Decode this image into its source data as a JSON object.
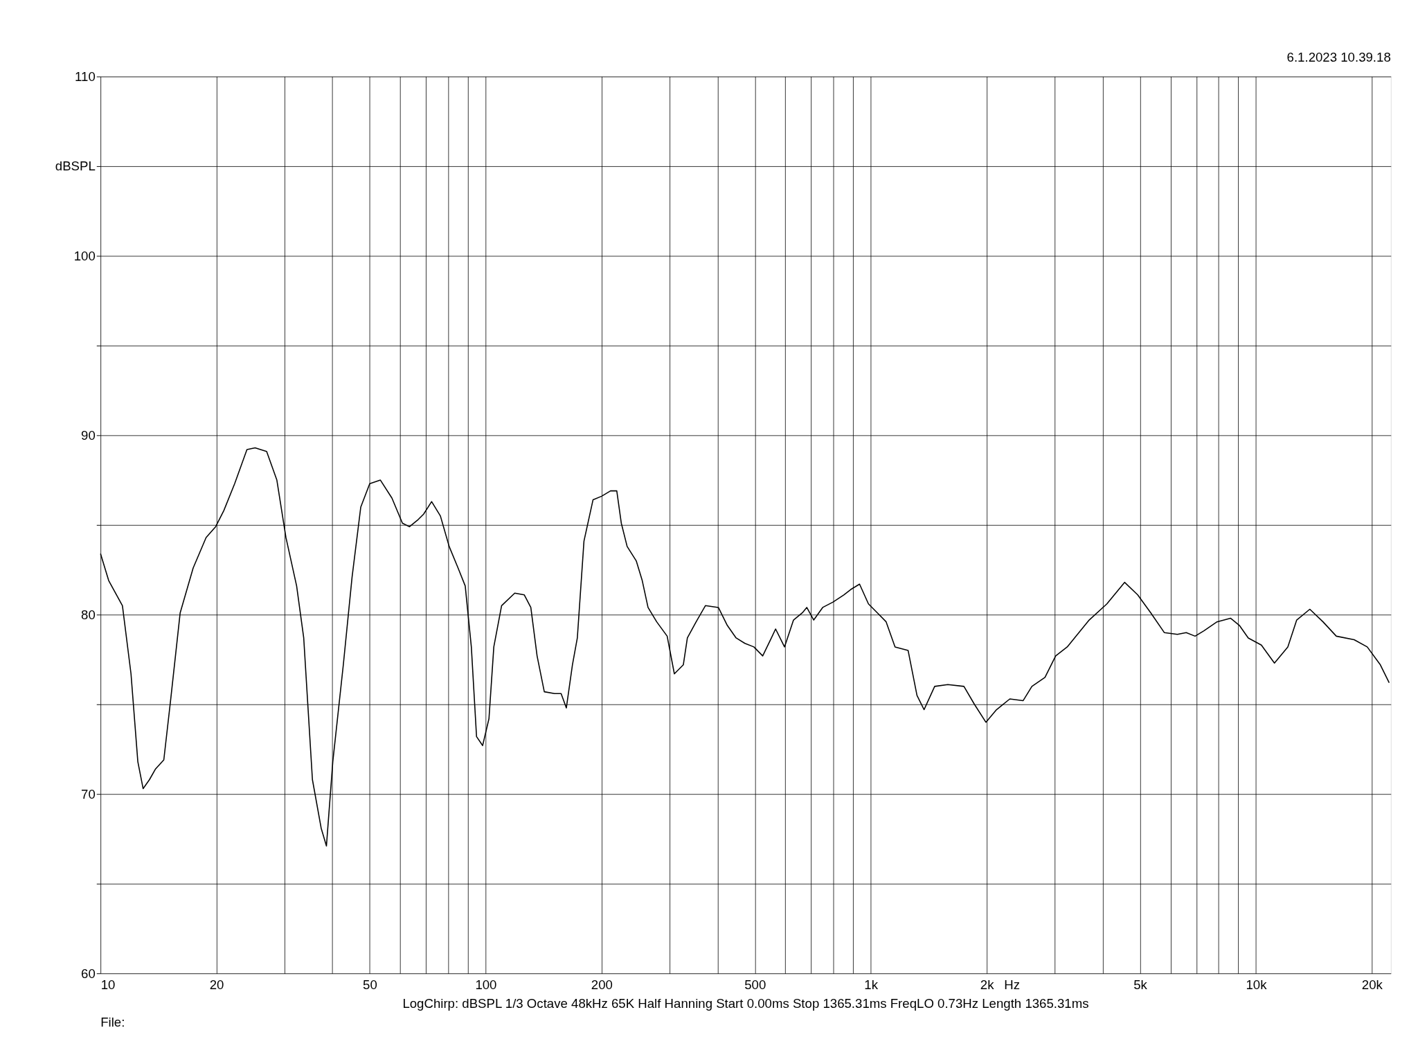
{
  "chart_data": {
    "type": "line",
    "xlabel": "Hz",
    "ylabel": "dBSPL",
    "annotations": [
      "6.1.2023 10.39.18",
      "LogChirp:  dBSPL   1/3 Octave   48kHz   65K   Half Hanning   Start 0.00ms    Stop 1365.31ms    FreqLO 0.73Hz    Length 1365.31ms",
      "File:"
    ],
    "log": "x",
    "grid": true,
    "legend": false,
    "marker": "none",
    "line_style": "solid",
    "xlim": [
      10,
      22400
    ],
    "ylim": [
      60,
      110
    ],
    "xticks": [
      10,
      20,
      {
        "value": 30,
        "label": null
      },
      {
        "value": 40,
        "label": null
      },
      50,
      {
        "value": 60,
        "label": null
      },
      {
        "value": 70,
        "label": null
      },
      {
        "value": 80,
        "label": null
      },
      {
        "value": 90,
        "label": null
      },
      100,
      200,
      {
        "value": 300,
        "label": null
      },
      {
        "value": 400,
        "label": null
      },
      500,
      {
        "value": 600,
        "label": null
      },
      {
        "value": 700,
        "label": null
      },
      {
        "value": 800,
        "label": null
      },
      {
        "value": 900,
        "label": null
      },
      {
        "value": 1000,
        "label": "1k"
      },
      {
        "value": 2000,
        "label": "2k"
      },
      {
        "value": 3000,
        "label": null
      },
      {
        "value": 4000,
        "label": null
      },
      {
        "value": 5000,
        "label": "5k"
      },
      {
        "value": 6000,
        "label": null
      },
      {
        "value": 7000,
        "label": null
      },
      {
        "value": 8000,
        "label": null
      },
      {
        "value": 9000,
        "label": null
      },
      {
        "value": 10000,
        "label": "10k"
      },
      {
        "value": 20000,
        "label": "20k"
      }
    ],
    "yticks": [
      60,
      {
        "value": 65,
        "label": null
      },
      70,
      {
        "value": 75,
        "label": null
      },
      80,
      {
        "value": 85,
        "label": null
      },
      90,
      {
        "value": 95,
        "label": null
      },
      100,
      {
        "value": 105,
        "label": null
      },
      110
    ],
    "series": [
      {
        "color": "#000000",
        "x": [
          10,
          10.5,
          11.4,
          12.0,
          12.5,
          12.9,
          13.4,
          13.9,
          14.6,
          15.2,
          16.1,
          17.4,
          18.8,
          19.9,
          20.9,
          22.3,
          24.0,
          25.2,
          27.0,
          28.7,
          30.3,
          32.3,
          33.7,
          35.5,
          37.4,
          38.6,
          40.1,
          42.7,
          45.0,
          47.4,
          50.0,
          53.3,
          57.1,
          60.8,
          63.4,
          66.8,
          69.0,
          72.4,
          76.3,
          80.4,
          84.8,
          88.5,
          91.8,
          94.7,
          98.2,
          102,
          105,
          110,
          119,
          126,
          131,
          136,
          142,
          151,
          157,
          162,
          168,
          173,
          180,
          190,
          200,
          211,
          219,
          225,
          233,
          246,
          255,
          264,
          278,
          296,
          309,
          326,
          334,
          352,
          372,
          402,
          424,
          447,
          471,
          497,
          524,
          552,
          566,
          597,
          630,
          664,
          682,
          711,
          750,
          798,
          851,
          887,
          935,
          986,
          1040,
          1096,
          1156,
          1250,
          1318,
          1375,
          1465,
          1585,
          1745,
          1858,
          1990,
          2120,
          2296,
          2485,
          2620,
          2833,
          3020,
          3236,
          3412,
          3690,
          4102,
          4560,
          4932,
          5333,
          5781,
          6252,
          6592,
          6950,
          7328,
          7925,
          8590,
          9057,
          9550,
          10330,
          11170,
          12100,
          12760,
          13800,
          14930,
          16170,
          17990,
          19450,
          21040,
          22180
        ],
        "values": [
          83.4,
          81.9,
          80.5,
          76.7,
          71.8,
          70.3,
          70.8,
          71.4,
          71.9,
          75.2,
          80.1,
          82.6,
          84.3,
          84.9,
          85.8,
          87.3,
          89.2,
          89.3,
          89.1,
          87.5,
          84.3,
          81.6,
          78.7,
          70.8,
          68.1,
          67.1,
          71.8,
          77.2,
          82.1,
          86.0,
          87.3,
          87.5,
          86.5,
          85.1,
          84.9,
          85.3,
          85.6,
          86.3,
          85.5,
          83.8,
          82.6,
          81.6,
          78.2,
          73.2,
          72.7,
          74.2,
          78.2,
          80.5,
          81.2,
          81.1,
          80.4,
          77.7,
          75.7,
          75.6,
          75.6,
          74.8,
          77.2,
          78.7,
          84.1,
          86.4,
          86.6,
          86.9,
          86.9,
          85.1,
          83.8,
          83.0,
          81.9,
          80.4,
          79.6,
          78.8,
          76.7,
          77.2,
          78.7,
          79.6,
          80.5,
          80.4,
          79.4,
          78.7,
          78.4,
          78.2,
          77.7,
          78.7,
          79.2,
          78.2,
          79.7,
          80.1,
          80.4,
          79.7,
          80.4,
          80.7,
          81.1,
          81.4,
          81.7,
          80.6,
          80.1,
          79.6,
          78.2,
          78.0,
          75.5,
          74.7,
          76.0,
          76.1,
          76.0,
          75.0,
          74.0,
          74.7,
          75.3,
          75.2,
          76.0,
          76.5,
          77.7,
          78.2,
          78.8,
          79.7,
          80.6,
          81.8,
          81.1,
          80.1,
          79.0,
          78.9,
          79.0,
          78.8,
          79.1,
          79.6,
          79.8,
          79.4,
          78.7,
          78.3,
          77.3,
          78.2,
          79.7,
          80.3,
          79.6,
          78.8,
          78.6,
          78.2,
          77.2,
          76.2
        ]
      }
    ]
  }
}
